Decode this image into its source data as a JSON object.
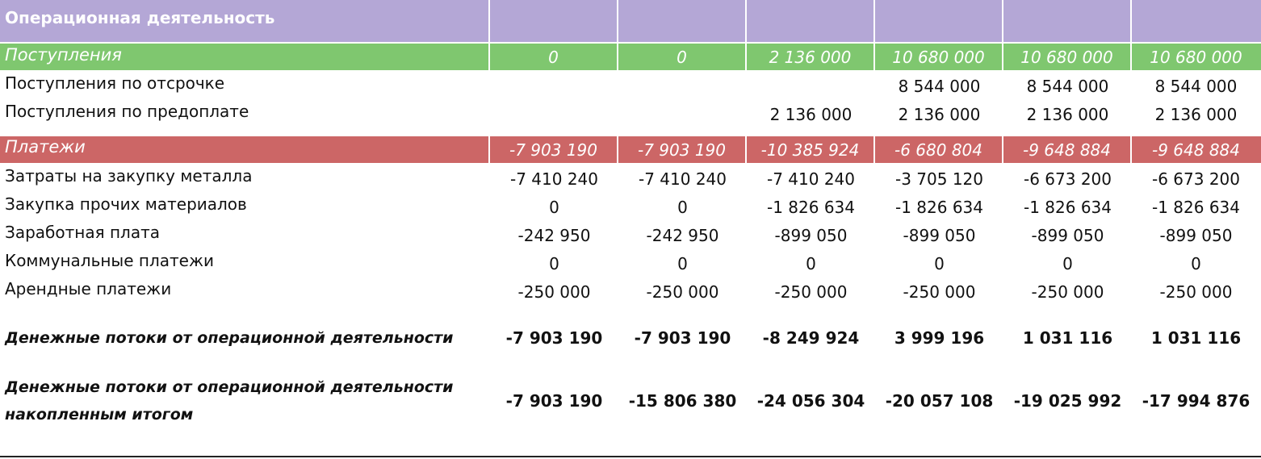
{
  "header": {
    "title": "Операционная деятельность",
    "cols": [
      "",
      "",
      "",
      "",
      "",
      ""
    ]
  },
  "income": {
    "label": "Поступления",
    "values": [
      "0",
      "0",
      "2 136 000",
      "10 680 000",
      "10 680 000",
      "10 680 000"
    ],
    "rows": [
      {
        "label": "Поступления по отсрочке",
        "values": [
          "",
          "",
          "",
          "8 544 000",
          "8 544 000",
          "8 544 000"
        ]
      },
      {
        "label": "Поступления по предоплате",
        "values": [
          "",
          "",
          "2 136 000",
          "2 136 000",
          "2 136 000",
          "2 136 000"
        ]
      }
    ]
  },
  "payments": {
    "label": "Платежи",
    "values": [
      "-7 903 190",
      "-7 903 190",
      "-10 385 924",
      "-6 680 804",
      "-9 648 884",
      "-9 648 884"
    ],
    "rows": [
      {
        "label": "Затраты на закупку металла",
        "values": [
          "-7 410 240",
          "-7 410 240",
          "-7 410 240",
          "-3 705 120",
          "-6 673 200",
          "-6 673 200"
        ]
      },
      {
        "label": "Закупка прочих материалов",
        "values": [
          "0",
          "0",
          "-1 826 634",
          "-1 826 634",
          "-1 826 634",
          "-1 826 634"
        ]
      },
      {
        "label": "Заработная плата",
        "values": [
          "-242 950",
          "-242 950",
          "-899 050",
          "-899 050",
          "-899 050",
          "-899 050"
        ]
      },
      {
        "label": "Коммунальные платежи",
        "values": [
          "0",
          "0",
          "0",
          "0",
          "0",
          "0"
        ]
      },
      {
        "label": "Арендные платежи",
        "values": [
          "-250 000",
          "-250 000",
          "-250 000",
          "-250 000",
          "-250 000",
          "-250 000"
        ]
      }
    ]
  },
  "totals": {
    "operating_cf": {
      "label": "Денежные потоки от операционной деятельности",
      "values": [
        "-7 903 190",
        "-7 903 190",
        "-8 249 924",
        "3 999 196",
        "1 031 116",
        "1 031 116"
      ]
    },
    "cumulative_cf": {
      "label": "Денежные потоки от операционной деятельности накопленным итогом",
      "values": [
        "-7 903 190",
        "-15 806 380",
        "-24 056 304",
        "-20 057 108",
        "-19 025 992",
        "-17 994 876"
      ]
    }
  },
  "colors": {
    "header_bg": "#b4a7d6",
    "income_bg": "#7fc76f",
    "payments_bg": "#cc6666"
  }
}
